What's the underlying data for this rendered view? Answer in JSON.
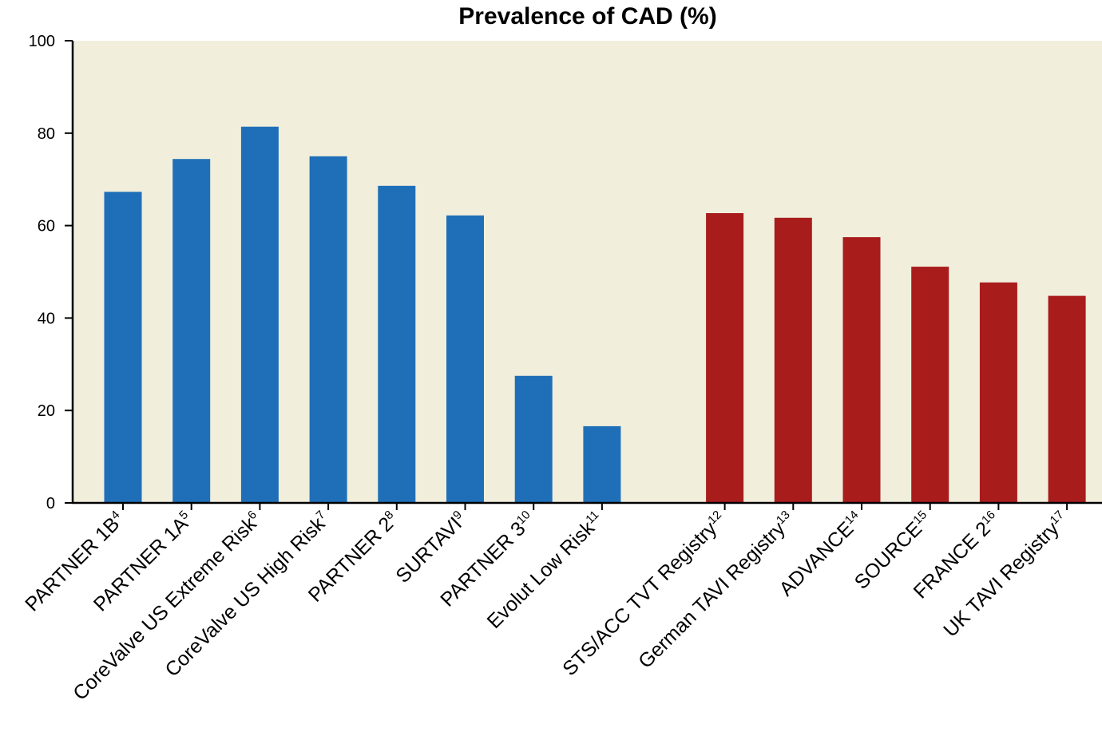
{
  "chart_data": {
    "type": "bar",
    "title": "Prevalence of CAD (%)",
    "xlabel": "",
    "ylabel": "",
    "ylim": [
      0,
      100
    ],
    "yticks": [
      0,
      20,
      40,
      60,
      80,
      100
    ],
    "grid": false,
    "plot_background": "#f1eedc",
    "groups": [
      {
        "color": "#1f6fb8",
        "categories": [
          {
            "label": "PARTNER 1B",
            "ref": "4",
            "value": 67.3
          },
          {
            "label": "PARTNER 1A",
            "ref": "5",
            "value": 74.4
          },
          {
            "label": "CoreValve US Extreme Risk",
            "ref": "6",
            "value": 81.4
          },
          {
            "label": "CoreValve US High Risk",
            "ref": "7",
            "value": 75.0
          },
          {
            "label": "PARTNER 2",
            "ref": "8",
            "value": 68.6
          },
          {
            "label": "SURTAVI",
            "ref": "9",
            "value": 62.2
          },
          {
            "label": "PARTNER 3",
            "ref": "10",
            "value": 27.5
          },
          {
            "label": "Evolut Low Risk",
            "ref": "11",
            "value": 16.6
          }
        ]
      },
      {
        "color": "#a81c1c",
        "categories": [
          {
            "label": "STS/ACC TVT Registry",
            "ref": "12",
            "value": 62.7
          },
          {
            "label": "German TAVI Registry",
            "ref": "13",
            "value": 61.7
          },
          {
            "label": "ADVANCE",
            "ref": "14",
            "value": 57.5
          },
          {
            "label": "SOURCE",
            "ref": "15",
            "value": 51.1
          },
          {
            "label": "FRANCE 2",
            "ref": "16",
            "value": 47.7
          },
          {
            "label": "UK TAVI Registry",
            "ref": "17",
            "value": 44.8
          }
        ]
      }
    ]
  }
}
